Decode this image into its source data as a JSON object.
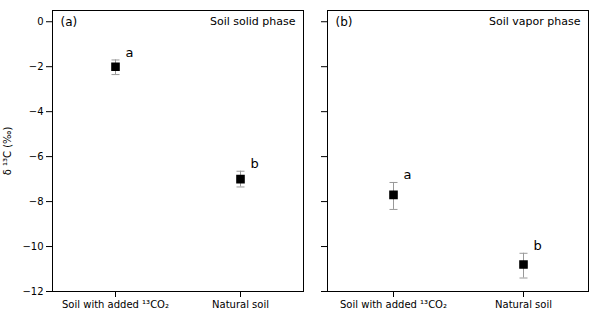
{
  "chart_data": [
    {
      "type": "scatter",
      "title": "Soil solid phase",
      "panel_label": "(a)",
      "categories": [
        "Soil with added ¹³CO₂",
        "Natural soil"
      ],
      "values": [
        -2.0,
        -7.0
      ],
      "error_up": [
        0.3,
        0.35
      ],
      "error_down": [
        0.35,
        0.35
      ],
      "sig_labels": [
        "a",
        "b"
      ],
      "ylabel": "δ ¹³C (‰)",
      "ylim": [
        -12,
        0.5
      ],
      "yticks": [
        0,
        -2,
        -4,
        -6,
        -8,
        -10,
        -12
      ],
      "color": "#000000",
      "marker": "square",
      "grid": false
    },
    {
      "type": "scatter",
      "title": "Soil vapor phase",
      "panel_label": "(b)",
      "categories": [
        "Soil with added ¹³CO₂",
        "Natural soil"
      ],
      "values": [
        -7.7,
        -10.8
      ],
      "error_up": [
        0.55,
        0.5
      ],
      "error_down": [
        0.65,
        0.6
      ],
      "sig_labels": [
        "a",
        "b"
      ],
      "ylim": [
        -12,
        0.5
      ],
      "yticks": [
        0,
        -2,
        -4,
        -6,
        -8,
        -10,
        -12
      ],
      "color": "#000000",
      "marker": "square",
      "grid": false,
      "tick_labels": "x"
    }
  ]
}
